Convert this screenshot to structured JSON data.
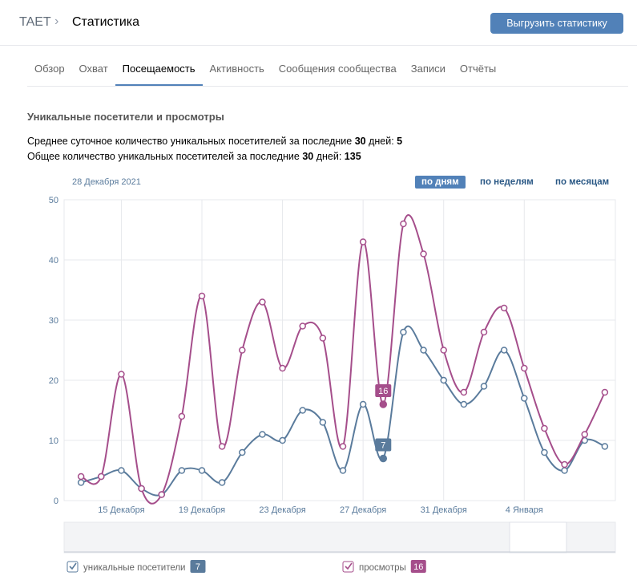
{
  "header": {
    "breadcrumb": "TAET",
    "title": "Статистика",
    "button": "Выгрузить статистику"
  },
  "tabs": [
    "Обзор",
    "Охват",
    "Посещаемость",
    "Активность",
    "Сообщения сообщества",
    "Записи",
    "Отчёты"
  ],
  "active_tab": 2,
  "section": {
    "title": "Уникальные посетители и просмотры",
    "lines": [
      [
        "Среднее суточное количество уникальных посетителей за последние ",
        "30",
        " дней: ",
        "5"
      ],
      [
        "Общее количество уникальных посетителей за последние ",
        "30",
        " дней: ",
        "135"
      ]
    ]
  },
  "period_buttons": [
    "по дням",
    "по неделям",
    "по месяцам"
  ],
  "active_period": 0,
  "chart_data": {
    "type": "line",
    "selected_date": "2021-12-28",
    "selected_date_label": "28 Декабря 2021",
    "x": [
      "2021-12-13",
      "2021-12-14",
      "2021-12-15",
      "2021-12-16",
      "2021-12-17",
      "2021-12-18",
      "2021-12-19",
      "2021-12-20",
      "2021-12-21",
      "2021-12-22",
      "2021-12-23",
      "2021-12-24",
      "2021-12-25",
      "2021-12-26",
      "2021-12-27",
      "2021-12-28",
      "2021-12-29",
      "2021-12-30",
      "2021-12-31",
      "2022-01-01",
      "2022-01-02",
      "2022-01-03",
      "2022-01-04",
      "2022-01-05",
      "2022-01-06",
      "2022-01-07",
      "2022-01-08"
    ],
    "xlim": [
      "2021-12-12",
      "2022-01-09"
    ],
    "xticks": [
      {
        "value": "2021-12-15",
        "label": "15 Декабря"
      },
      {
        "value": "2021-12-19",
        "label": "19 Декабря"
      },
      {
        "value": "2021-12-23",
        "label": "23 Декабря"
      },
      {
        "value": "2021-12-27",
        "label": "27 Декабря"
      },
      {
        "value": "2021-12-31",
        "label": "31 Декабря"
      },
      {
        "value": "2022-01-04",
        "label": "4 Января"
      }
    ],
    "ylim": [
      0,
      50
    ],
    "yticks": [
      0,
      10,
      20,
      30,
      40,
      50
    ],
    "grid": true,
    "series": [
      {
        "name": "уникальные посетители",
        "color": "#5a7b9c",
        "values": [
          3,
          4,
          5,
          2,
          1,
          5,
          5,
          3,
          8,
          11,
          10,
          15,
          13,
          5,
          16,
          7,
          28,
          25,
          20,
          16,
          19,
          25,
          17,
          8,
          5,
          10,
          9
        ]
      },
      {
        "name": "просмотры",
        "color": "#a54e8b",
        "values": [
          4,
          4,
          21,
          2,
          1,
          14,
          34,
          9,
          25,
          33,
          22,
          29,
          27,
          9,
          43,
          16,
          46,
          41,
          25,
          18,
          28,
          32,
          22,
          12,
          6,
          11,
          18
        ]
      }
    ]
  }
}
